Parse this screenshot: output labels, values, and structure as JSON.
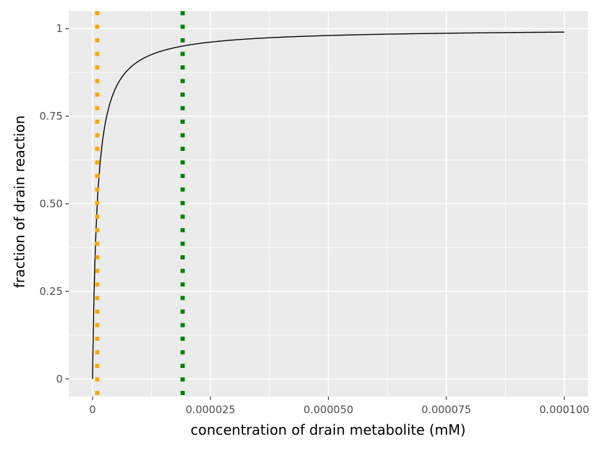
{
  "chart_data": {
    "type": "line",
    "title": "",
    "xlabel": "concentration of drain metabolite (mM)",
    "ylabel": "fraction of drain reaction",
    "xlim": [
      -5e-06,
      0.000105
    ],
    "ylim": [
      -0.05,
      1.05
    ],
    "x_ticks": [
      0,
      2.5e-05,
      5e-05,
      7.5e-05,
      0.0001
    ],
    "x_tick_labels": [
      "0",
      "0.000025",
      "0.000050",
      "0.000075",
      "0.000100"
    ],
    "y_ticks": [
      0,
      0.25,
      0.5,
      0.75,
      1
    ],
    "y_tick_labels": [
      "0",
      "0.25",
      "0.50",
      "0.75",
      "1"
    ],
    "grid": true,
    "curve": {
      "model": "saturation",
      "km": 1e-06,
      "x_start": 0,
      "x_end": 0.0001,
      "color": "#000000"
    },
    "vlines": [
      {
        "x": 1e-06,
        "color": "#FFA500",
        "style": "dotted"
      },
      {
        "x": 1.91e-05,
        "color": "#008000",
        "style": "dotted"
      }
    ],
    "colors": {
      "panel_background": "#EBEBEB",
      "grid": "#FFFFFF"
    }
  }
}
